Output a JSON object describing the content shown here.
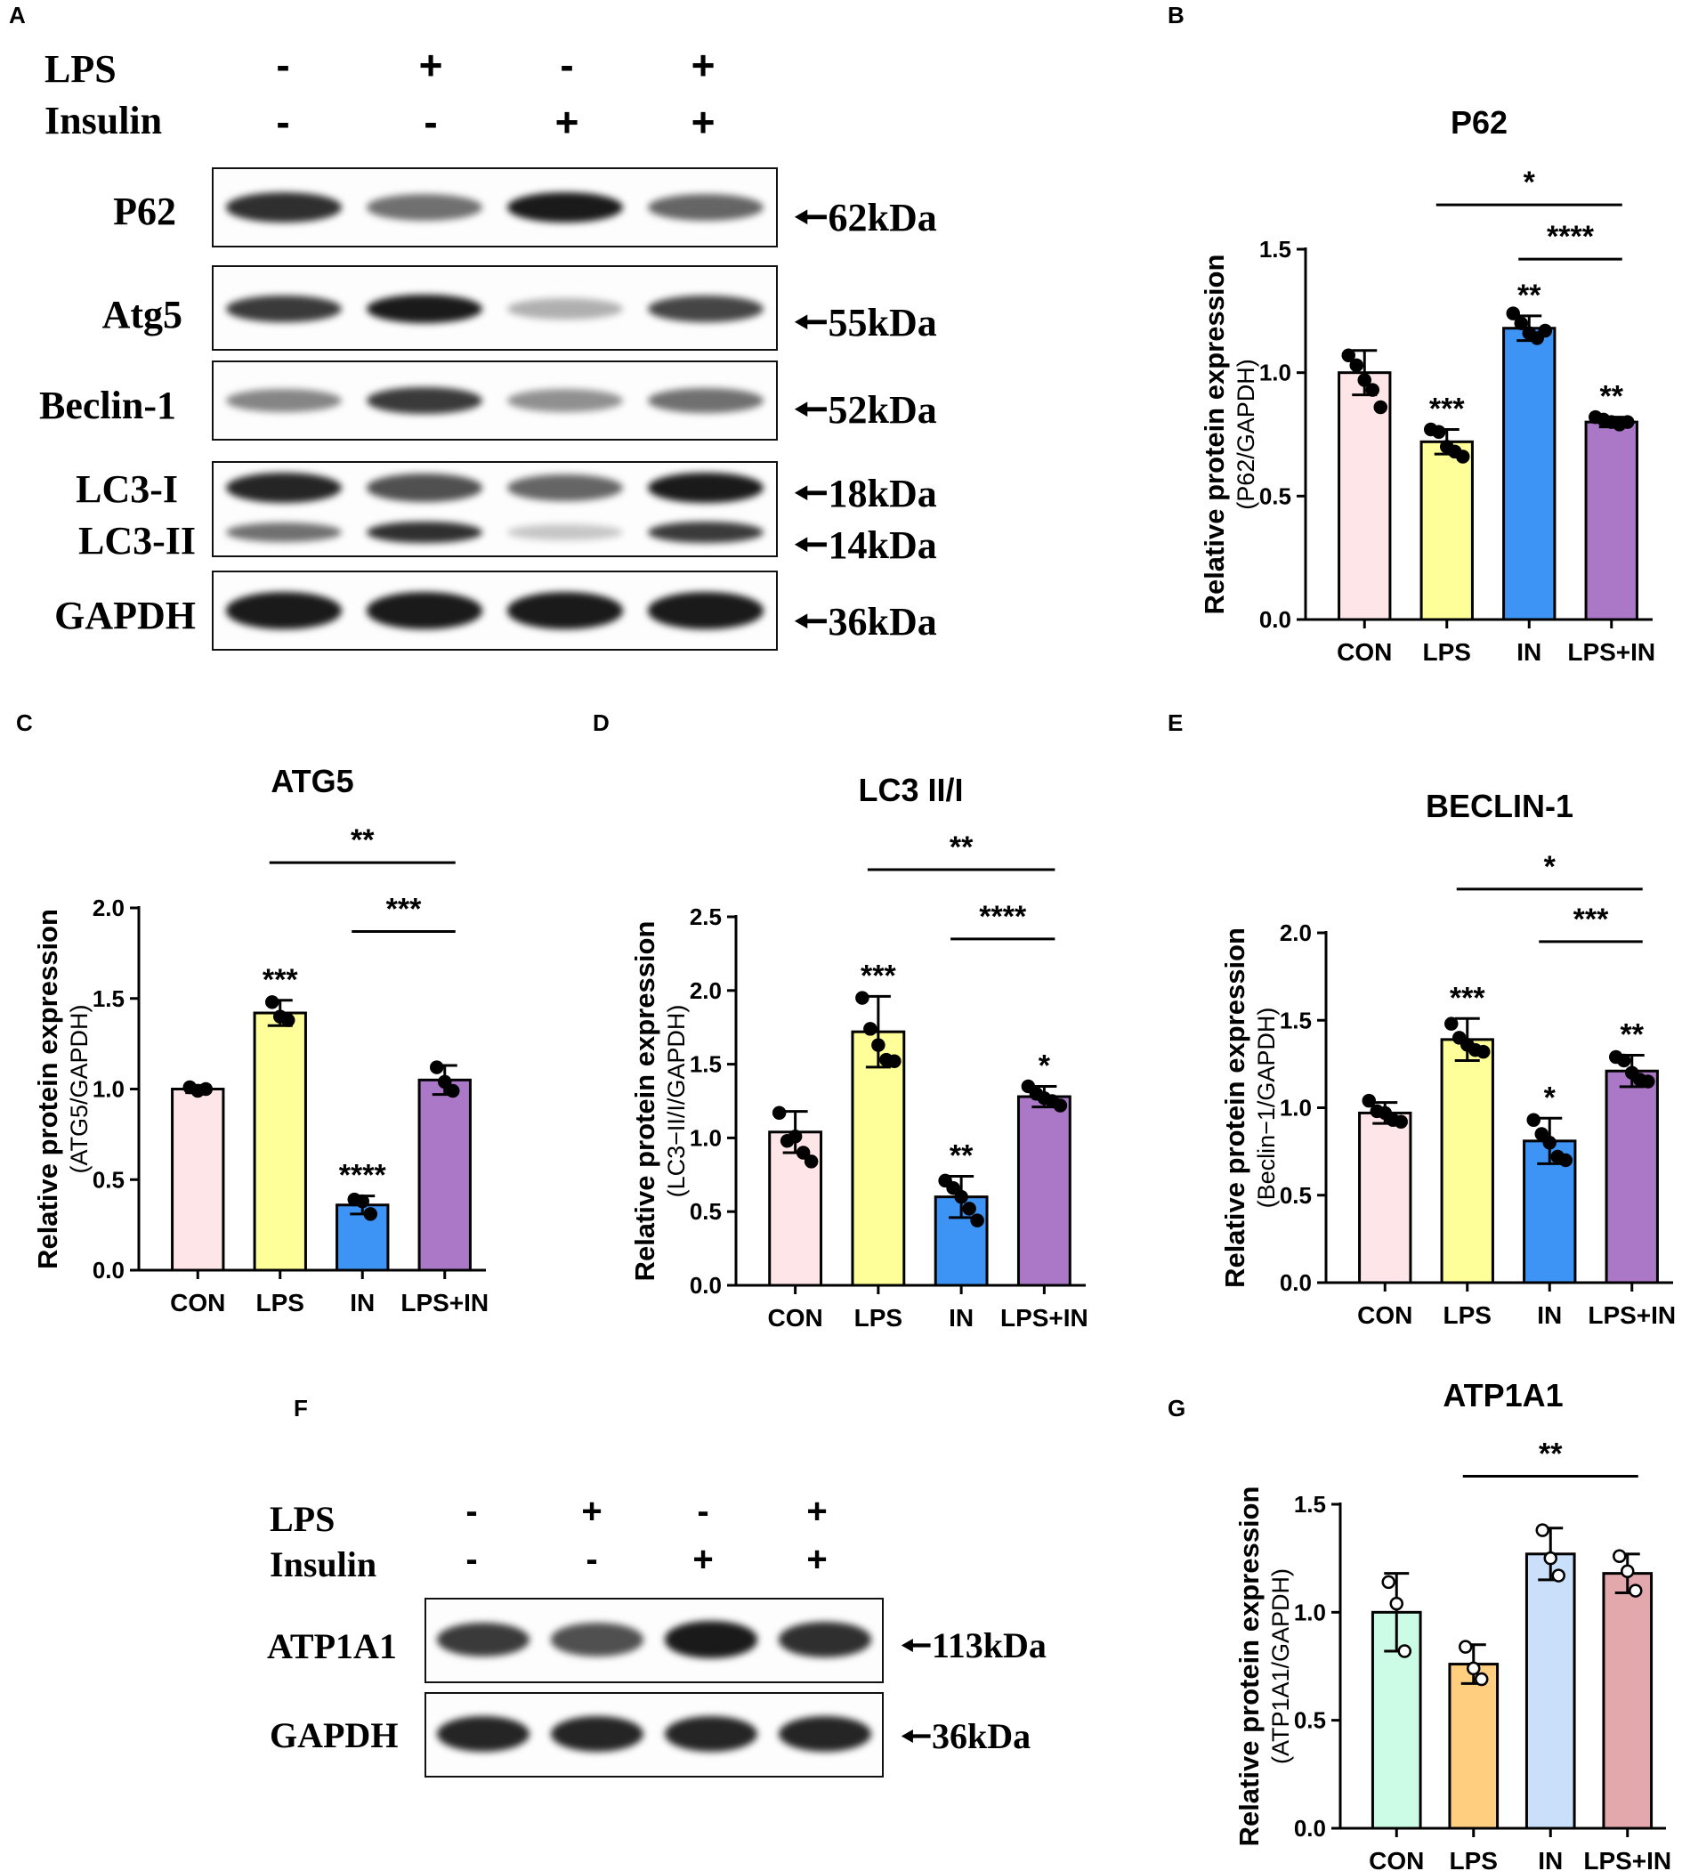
{
  "panel_letters": {
    "A": "A",
    "B": "B",
    "C": "C",
    "D": "D",
    "E": "E",
    "F": "F",
    "G": "G"
  },
  "blot_a": {
    "treatments": [
      {
        "label": "LPS",
        "signs": [
          "-",
          "+",
          "-",
          "+"
        ]
      },
      {
        "label": "Insulin",
        "signs": [
          "-",
          "-",
          "+",
          "+"
        ]
      }
    ],
    "proteins": [
      {
        "label": "P62",
        "kda": "62kDa",
        "intensity": [
          0.85,
          0.55,
          0.95,
          0.6
        ]
      },
      {
        "label": "Atg5",
        "kda": "55kDa",
        "intensity": [
          0.8,
          0.95,
          0.25,
          0.75
        ]
      },
      {
        "label": "Beclin-1",
        "kda": "52kDa",
        "intensity": [
          0.45,
          0.8,
          0.4,
          0.55
        ]
      },
      {
        "label": "LC3-I",
        "kda": "18kDa",
        "intensity": [
          0.9,
          0.7,
          0.6,
          0.95
        ]
      },
      {
        "label": "LC3-II",
        "kda": "14kDa",
        "intensity": [
          0.55,
          0.85,
          0.15,
          0.8
        ]
      },
      {
        "label": "GAPDH",
        "kda": "36kDa",
        "intensity": [
          0.95,
          0.95,
          0.95,
          0.95
        ]
      }
    ]
  },
  "blot_f": {
    "treatments": [
      {
        "label": "LPS",
        "signs": [
          "-",
          "+",
          "-",
          "+"
        ]
      },
      {
        "label": "Insulin",
        "signs": [
          "-",
          "-",
          "+",
          "+"
        ]
      }
    ],
    "proteins": [
      {
        "label": "ATP1A1",
        "kda": "113kDa",
        "intensity": [
          0.8,
          0.7,
          0.95,
          0.85
        ]
      },
      {
        "label": "GAPDH",
        "kda": "36kDa",
        "intensity": [
          0.9,
          0.9,
          0.9,
          0.9
        ]
      }
    ]
  },
  "chart_data": [
    {
      "panel": "B",
      "type": "bar",
      "title": "P62",
      "ylabel": "Relative protein expression",
      "ylabel2": "(P62/GAPDH)",
      "categories": [
        "CON",
        "LPS",
        "IN",
        "LPS+IN"
      ],
      "values": [
        1.0,
        0.72,
        1.18,
        0.8
      ],
      "errors": [
        0.09,
        0.05,
        0.05,
        0.02
      ],
      "points": [
        [
          1.07,
          1.03,
          0.97,
          0.93,
          0.86
        ],
        [
          0.77,
          0.76,
          0.7,
          0.68,
          0.66
        ],
        [
          1.24,
          1.2,
          1.16,
          1.14,
          1.17
        ],
        [
          0.82,
          0.81,
          0.8,
          0.79,
          0.8
        ]
      ],
      "sig_above": [
        "",
        "***",
        "**",
        "**"
      ],
      "ylim": [
        0,
        1.5
      ],
      "yticks": [
        "0.0",
        "0.5",
        "1.0",
        "1.5"
      ],
      "ytick_values": [
        0,
        0.5,
        1.0,
        1.5
      ],
      "colors": [
        "#fde5e8",
        "#ffff99",
        "#3d94f5",
        "#aa78c7"
      ],
      "brackets": [
        {
          "from": 1,
          "to": 3,
          "label": "*",
          "y": 1.68
        },
        {
          "from": 2,
          "to": 3,
          "label": "****",
          "y": 1.46
        }
      ]
    },
    {
      "panel": "C",
      "type": "bar",
      "title": "ATG5",
      "ylabel": "Relative protein expression",
      "ylabel2": "(ATG5/GAPDH)",
      "categories": [
        "CON",
        "LPS",
        "IN",
        "LPS+IN"
      ],
      "values": [
        1.0,
        1.42,
        0.36,
        1.05
      ],
      "errors": [
        0.02,
        0.07,
        0.05,
        0.08
      ],
      "points": [
        [
          1.01,
          0.99,
          1.0
        ],
        [
          1.48,
          1.4,
          1.38
        ],
        [
          0.39,
          0.38,
          0.31
        ],
        [
          1.12,
          1.04,
          0.99
        ]
      ],
      "sig_above": [
        "",
        "***",
        "****",
        ""
      ],
      "ylim": [
        0,
        2.0
      ],
      "yticks": [
        "0.0",
        "0.5",
        "1.0",
        "1.5",
        "2.0"
      ],
      "ytick_values": [
        0,
        0.5,
        1.0,
        1.5,
        2.0
      ],
      "colors": [
        "#fde5e8",
        "#ffff99",
        "#3d94f5",
        "#aa78c7"
      ],
      "brackets": [
        {
          "from": 1,
          "to": 3,
          "label": "**",
          "y": 2.25
        },
        {
          "from": 2,
          "to": 3,
          "label": "***",
          "y": 1.87
        }
      ]
    },
    {
      "panel": "D",
      "type": "bar",
      "title": "LC3 II/I",
      "ylabel": "Relative protein expression",
      "ylabel2": "(LC3−II/I/GAPDH)",
      "categories": [
        "CON",
        "LPS",
        "IN",
        "LPS+IN"
      ],
      "values": [
        1.04,
        1.72,
        0.6,
        1.28
      ],
      "errors": [
        0.14,
        0.24,
        0.14,
        0.07
      ],
      "points": [
        [
          1.17,
          0.98,
          1.01,
          0.9,
          0.84
        ],
        [
          1.95,
          1.74,
          1.63,
          1.53,
          1.52
        ],
        [
          0.71,
          0.66,
          0.6,
          0.52,
          0.44
        ],
        [
          1.35,
          1.3,
          1.27,
          1.25,
          1.22
        ]
      ],
      "sig_above": [
        "",
        "***",
        "**",
        "*"
      ],
      "ylim": [
        0,
        2.5
      ],
      "yticks": [
        "0.0",
        "0.5",
        "1.0",
        "1.5",
        "2.0",
        "2.5"
      ],
      "ytick_values": [
        0,
        0.5,
        1.0,
        1.5,
        2.0,
        2.5
      ],
      "colors": [
        "#fde5e8",
        "#ffff99",
        "#3d94f5",
        "#aa78c7"
      ],
      "brackets": [
        {
          "from": 1,
          "to": 3,
          "label": "**",
          "y": 2.82
        },
        {
          "from": 2,
          "to": 3,
          "label": "****",
          "y": 2.35
        }
      ]
    },
    {
      "panel": "E",
      "type": "bar",
      "title": "BECLIN-1",
      "ylabel": "Relative protein expression",
      "ylabel2": "(Beclin−1/GAPDH)",
      "categories": [
        "CON",
        "LPS",
        "IN",
        "LPS+IN"
      ],
      "values": [
        0.97,
        1.39,
        0.81,
        1.21
      ],
      "errors": [
        0.06,
        0.12,
        0.13,
        0.09
      ],
      "points": [
        [
          1.04,
          0.98,
          0.97,
          0.93,
          0.92
        ],
        [
          1.48,
          1.4,
          1.36,
          1.33,
          1.32
        ],
        [
          0.93,
          0.85,
          0.8,
          0.72,
          0.7
        ],
        [
          1.29,
          1.27,
          1.2,
          1.16,
          1.15
        ]
      ],
      "sig_above": [
        "",
        "***",
        "*",
        "**"
      ],
      "ylim": [
        0,
        2.0
      ],
      "yticks": [
        "0.0",
        "0.5",
        "1.0",
        "1.5",
        "2.0"
      ],
      "ytick_values": [
        0,
        0.5,
        1.0,
        1.5,
        2.0
      ],
      "colors": [
        "#fde5e8",
        "#ffff99",
        "#3d94f5",
        "#aa78c7"
      ],
      "brackets": [
        {
          "from": 1,
          "to": 3,
          "label": "*",
          "y": 2.25
        },
        {
          "from": 2,
          "to": 3,
          "label": "***",
          "y": 1.95
        }
      ]
    },
    {
      "panel": "G",
      "type": "bar",
      "title": "ATP1A1",
      "ylabel": "Relative protein expression",
      "ylabel2": "(ATP1A1/GAPDH)",
      "categories": [
        "CON",
        "LPS",
        "IN",
        "LPS+IN"
      ],
      "values": [
        1.0,
        0.76,
        1.27,
        1.18
      ],
      "errors": [
        0.18,
        0.09,
        0.12,
        0.09
      ],
      "points": [
        [
          1.14,
          1.04,
          0.82
        ],
        [
          0.84,
          0.74,
          0.69
        ],
        [
          1.38,
          1.25,
          1.17
        ],
        [
          1.26,
          1.19,
          1.1
        ]
      ],
      "open_points": true,
      "sig_above": [
        "",
        "",
        "",
        ""
      ],
      "ylim": [
        0,
        1.5
      ],
      "yticks": [
        "0.0",
        "0.5",
        "1.0",
        "1.5"
      ],
      "ytick_values": [
        0,
        0.5,
        1.0,
        1.5
      ],
      "colors": [
        "#ccfbe6",
        "#ffce7e",
        "#c9dffa",
        "#e2a8ac"
      ],
      "brackets": [
        {
          "from": 1,
          "to": 3,
          "label": "**",
          "y": 1.63
        }
      ]
    }
  ]
}
